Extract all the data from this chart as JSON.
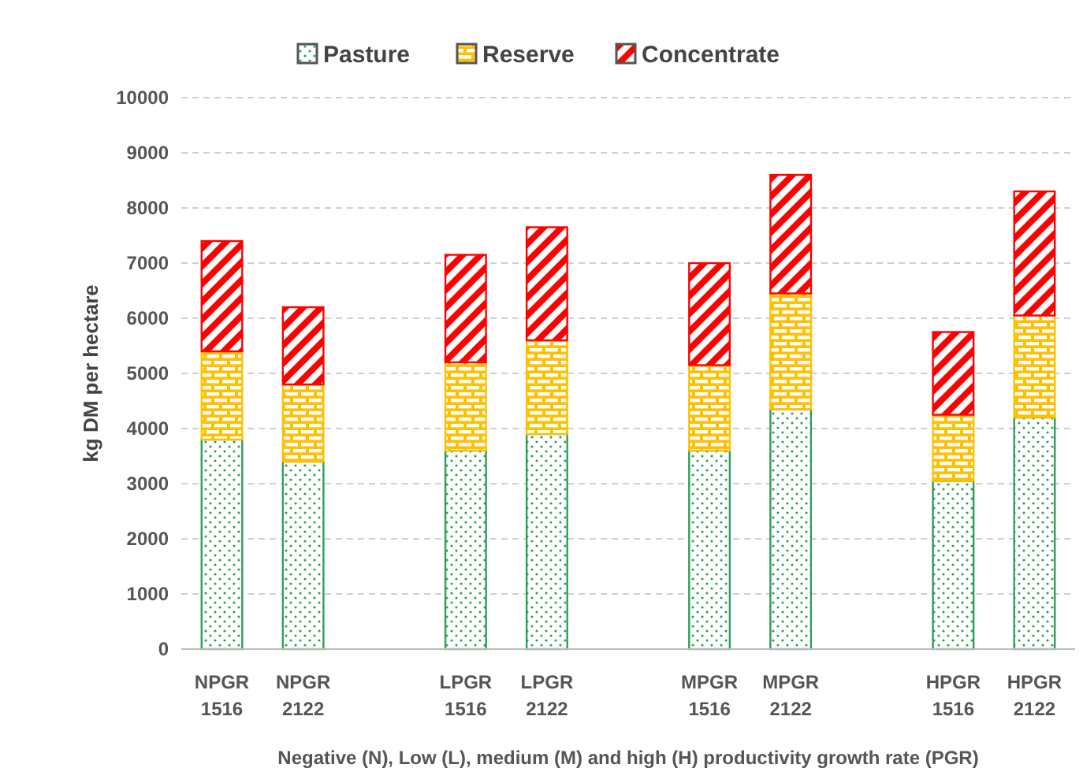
{
  "chart_data": {
    "type": "bar",
    "stacked": true,
    "xlabel": "Negative (N), Low (L), medium (M) and high (H) productivity growth rate (PGR)",
    "ylabel": "kg DM per hectare",
    "categories": [
      "NPGR 1516",
      "NPGR 2122",
      null,
      "LPGR 1516",
      "LPGR 2122",
      null,
      "MPGR 1516",
      "MPGR 2122",
      null,
      "HPGR 1516",
      "HPGR 2122"
    ],
    "series": [
      {
        "name": "Pasture",
        "color": "#2e9e5b",
        "values": [
          3800,
          3400,
          null,
          3600,
          3900,
          null,
          3600,
          4350,
          null,
          3050,
          4200
        ]
      },
      {
        "name": "Reserve",
        "color": "#ffc000",
        "values": [
          1600,
          1400,
          null,
          1600,
          1700,
          null,
          1550,
          2100,
          null,
          1200,
          1850
        ]
      },
      {
        "name": "Concentrate",
        "color": "#ff0000",
        "values": [
          2000,
          1400,
          null,
          1950,
          2050,
          null,
          1850,
          2150,
          null,
          1500,
          2250
        ]
      }
    ],
    "ylim": [
      0,
      10000
    ],
    "yticks": [
      0,
      1000,
      2000,
      3000,
      4000,
      5000,
      6000,
      7000,
      8000,
      9000,
      10000
    ],
    "grid": "y",
    "legend": "top"
  }
}
